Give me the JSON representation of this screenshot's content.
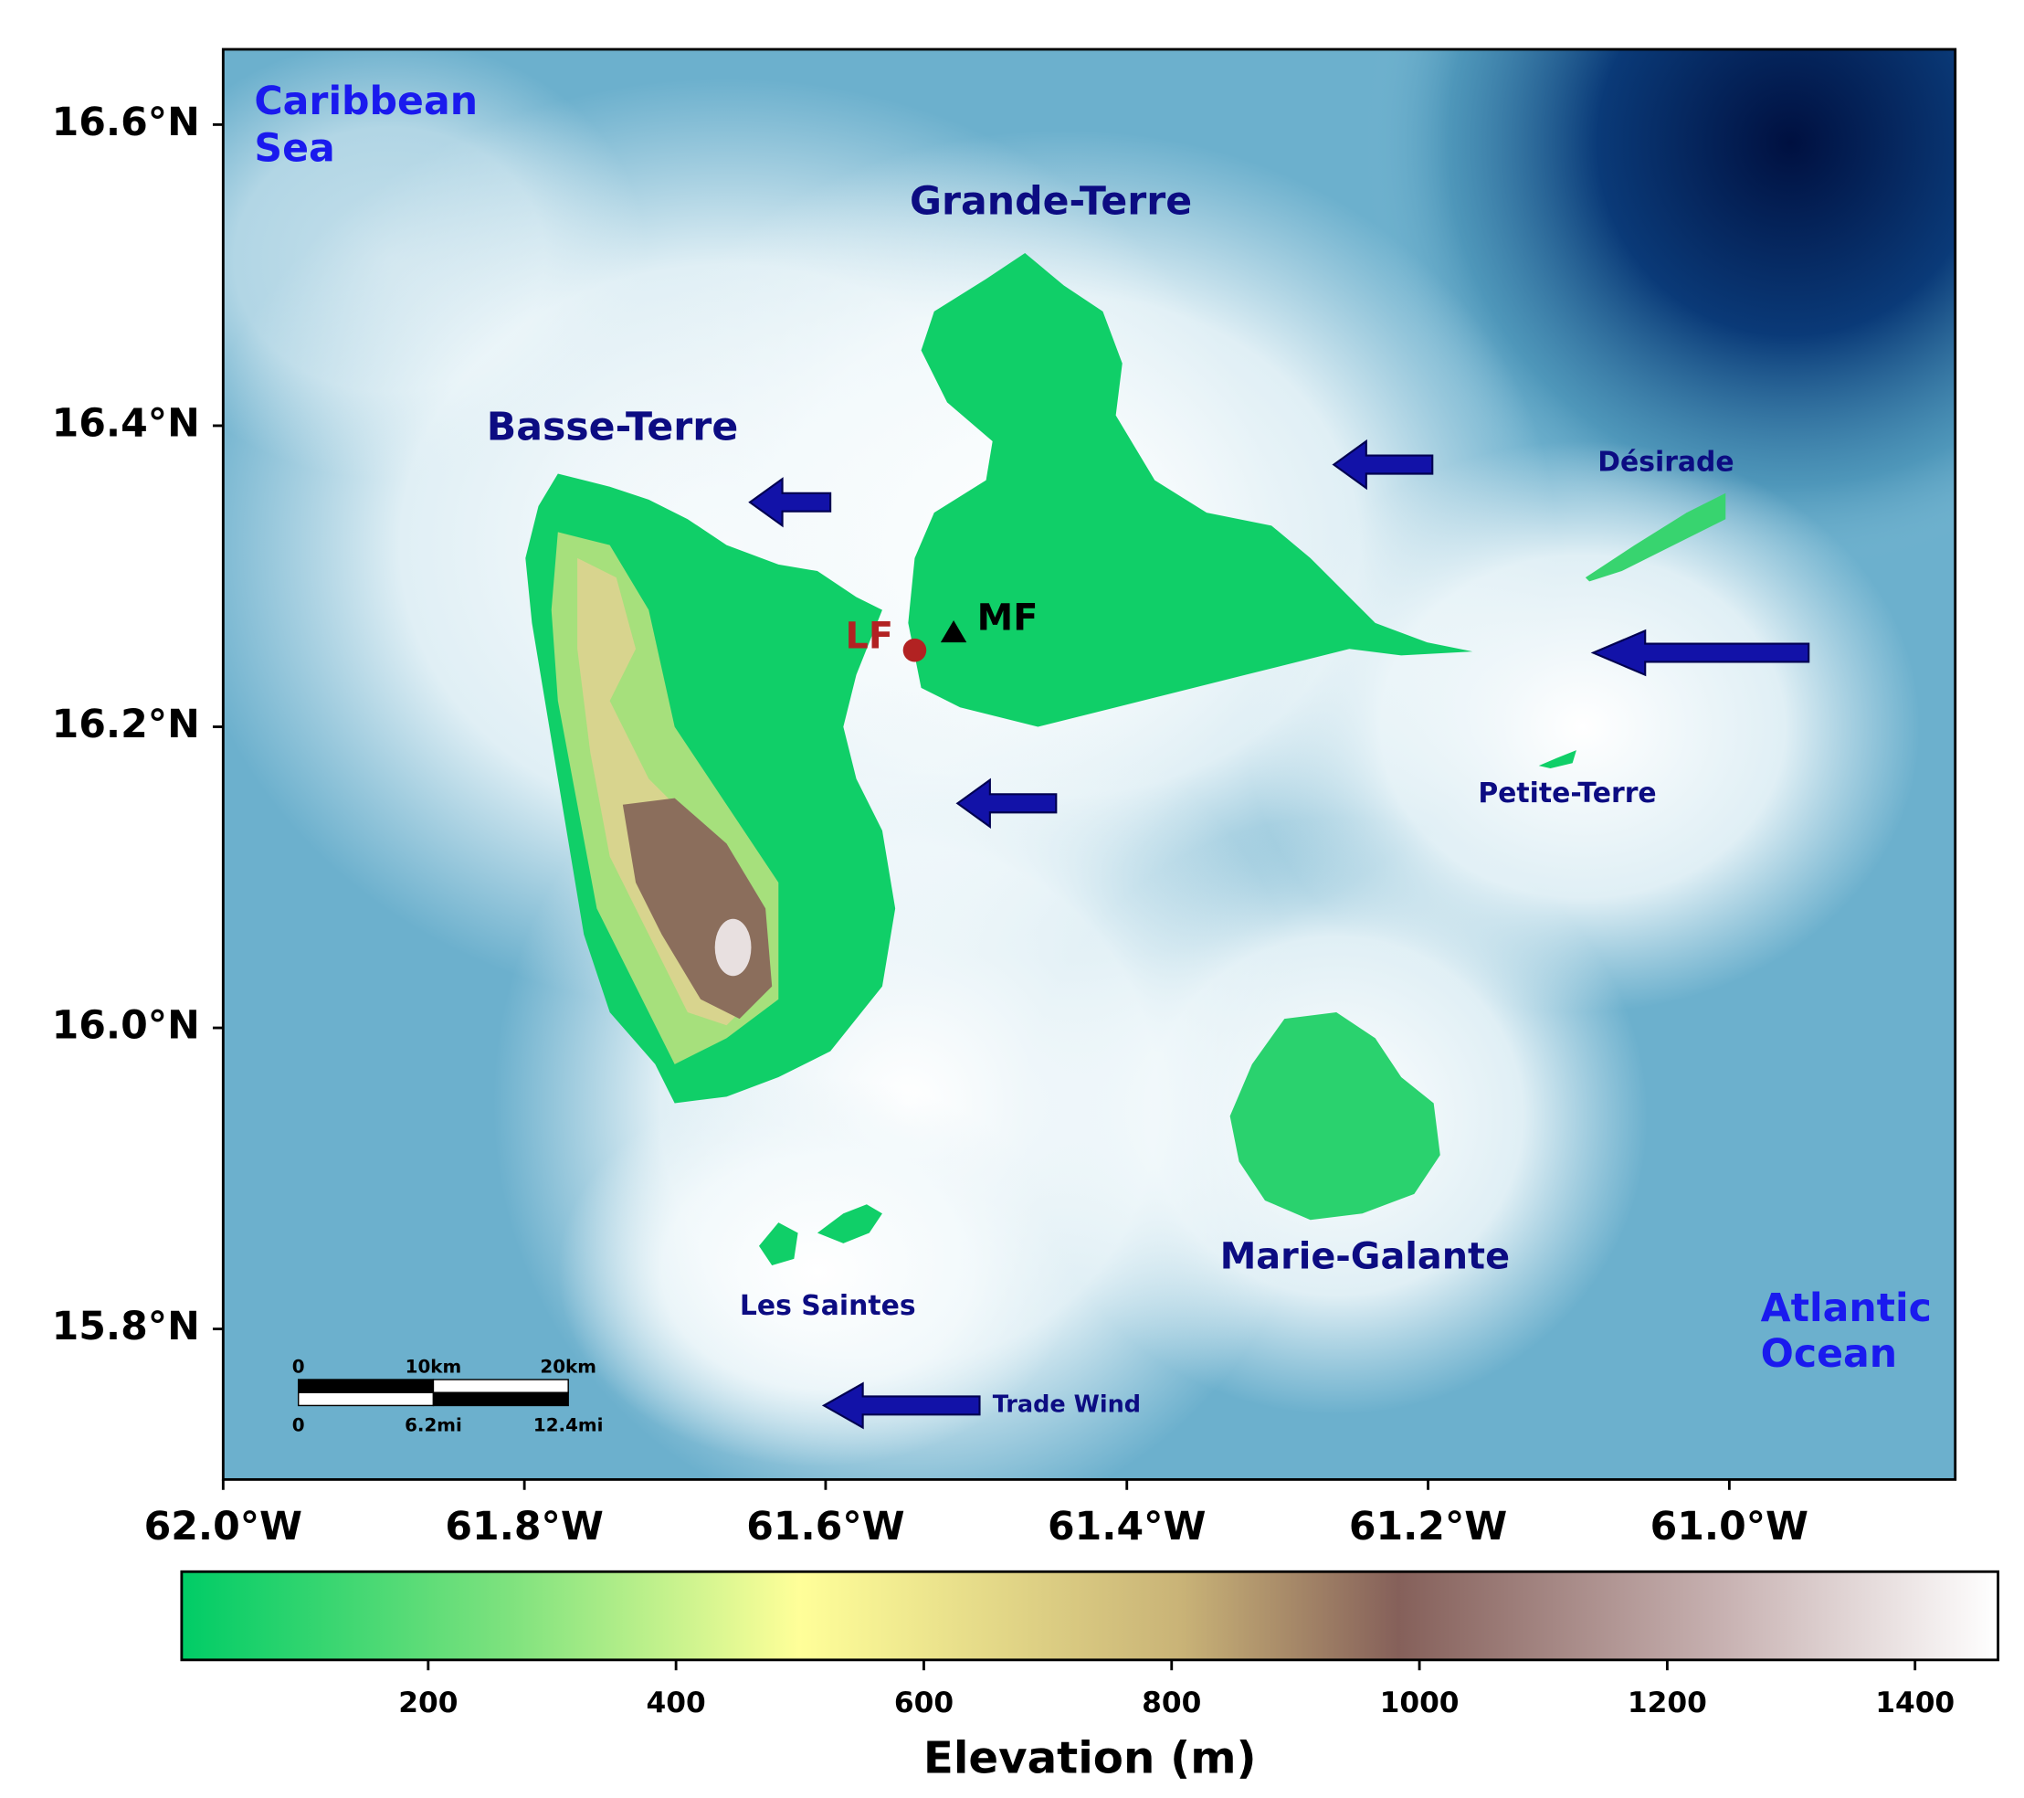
{
  "axes": {
    "x": {
      "lim": [
        -62.0,
        -60.85
      ],
      "ticks": [
        {
          "value": -62.0,
          "label": "62.0°W"
        },
        {
          "value": -61.8,
          "label": "61.8°W"
        },
        {
          "value": -61.6,
          "label": "61.6°W"
        },
        {
          "value": -61.4,
          "label": "61.4°W"
        },
        {
          "value": -61.2,
          "label": "61.2°W"
        },
        {
          "value": -61.0,
          "label": "61.0°W"
        }
      ]
    },
    "y": {
      "lim": [
        15.7,
        16.65
      ],
      "ticks": [
        {
          "value": 15.8,
          "label": "15.8°N"
        },
        {
          "value": 16.0,
          "label": "16.0°N"
        },
        {
          "value": 16.2,
          "label": "16.2°N"
        },
        {
          "value": 16.4,
          "label": "16.4°N"
        },
        {
          "value": 16.6,
          "label": "16.6°N"
        }
      ]
    }
  },
  "labels": {
    "caribbean_sea": [
      "Caribbean",
      "Sea"
    ],
    "atlantic_ocean": [
      "Atlantic",
      "Ocean"
    ],
    "grande_terre": "Grande-Terre",
    "basse_terre": "Basse-Terre",
    "desirade": "Désirade",
    "petite_terre": "Petite-Terre",
    "marie_galante": "Marie-Galante",
    "les_saintes": "Les Saintes",
    "trade_wind": "Trade Wind"
  },
  "stations": {
    "lf": "LF",
    "mf": "MF"
  },
  "scale_bar": {
    "km": [
      "0",
      "10km",
      "20km"
    ],
    "mi": [
      "0",
      "6.2mi",
      "12.4mi"
    ]
  },
  "colorbar": {
    "lim": [
      1,
      1467
    ],
    "ticks": [
      200,
      400,
      600,
      800,
      1000,
      1200,
      1400
    ],
    "label": "Elevation (m)"
  }
}
